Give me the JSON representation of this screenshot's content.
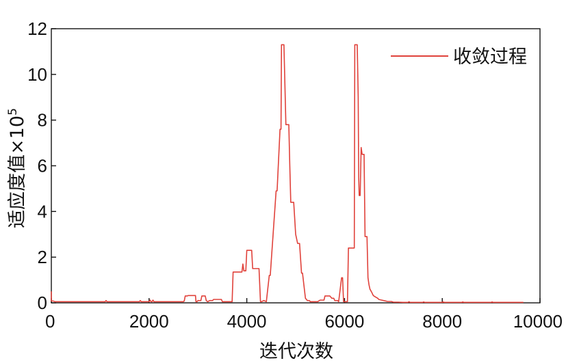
{
  "chart_data": {
    "type": "line",
    "title": "",
    "xlabel": "迭代次数",
    "ylabel": "适应度值×10",
    "ylabel_exponent": "5",
    "xlim": [
      0,
      10000
    ],
    "ylim": [
      0,
      12
    ],
    "xticks": [
      0,
      2000,
      4000,
      6000,
      8000,
      10000
    ],
    "yticks": [
      0,
      2,
      4,
      6,
      8,
      10,
      12
    ],
    "grid": false,
    "legend_position": "top-right",
    "series": [
      {
        "name": "收敛过程",
        "color": "#e0413a",
        "x": [
          0,
          0,
          40,
          80,
          1100,
          1120,
          1140,
          1160,
          1800,
          1820,
          1840,
          1900,
          2000,
          2020,
          2040,
          2060,
          2080,
          2100,
          2600,
          2700,
          2720,
          2740,
          2760,
          2780,
          2800,
          2950,
          2960,
          2980,
          3000,
          3060,
          3080,
          3150,
          3170,
          3200,
          3240,
          3300,
          3320,
          3340,
          3480,
          3500,
          3700,
          3720,
          3900,
          3920,
          3940,
          3980,
          4000,
          4100,
          4120,
          4250,
          4280,
          4300,
          4350,
          4400,
          4460,
          4480,
          4600,
          4620,
          4680,
          4700,
          4710,
          4720,
          4730,
          4740,
          4760,
          4800,
          4850,
          4860,
          4880,
          4900,
          4940,
          4960,
          5000,
          5040,
          5060,
          5080,
          5120,
          5140,
          5200,
          5240,
          5280,
          5300,
          5400,
          5450,
          5500,
          5560,
          5580,
          5600,
          5700,
          5740,
          5780,
          5800,
          5860,
          5880,
          5940,
          5960,
          5980,
          6020,
          6060,
          6080,
          6200,
          6210,
          6220,
          6240,
          6260,
          6280,
          6290,
          6300,
          6310,
          6320,
          6340,
          6360,
          6380,
          6400,
          6420,
          6440,
          6460,
          6480,
          6500,
          6520,
          6560,
          6580,
          6600,
          6640,
          6680,
          6700,
          6760,
          6800,
          6840,
          6880,
          6960,
          7000,
          7040,
          7100,
          7200,
          7300,
          7320,
          7340,
          7400,
          7600,
          7620,
          7640,
          7800,
          8000,
          8020,
          8040,
          8400,
          8420,
          8440,
          9000,
          9020,
          9040,
          9600,
          9650,
          9660
        ],
        "y": [
          0.5,
          0.08,
          0.08,
          0.05,
          0.05,
          0.1,
          0.05,
          0.05,
          0.05,
          0.1,
          0.05,
          0.05,
          0.05,
          0.12,
          0.05,
          0.05,
          0.12,
          0.05,
          0.05,
          0.05,
          0.08,
          0.3,
          0.3,
          0.3,
          0.32,
          0.32,
          0.05,
          0.05,
          0.1,
          0.1,
          0.3,
          0.3,
          0.1,
          0.05,
          0.1,
          0.1,
          0.15,
          0.15,
          0.15,
          0.05,
          0.05,
          1.35,
          1.35,
          1.7,
          1.4,
          1.4,
          2.3,
          2.3,
          1.5,
          1.5,
          0.05,
          0.05,
          0.1,
          0.05,
          1.2,
          1.2,
          4.9,
          4.9,
          7.6,
          7.6,
          11.3,
          11.3,
          11.3,
          11.3,
          11.3,
          7.8,
          7.8,
          7.8,
          6.0,
          4.4,
          4.4,
          4.4,
          3.0,
          2.6,
          2.6,
          2.6,
          1.3,
          1.3,
          0.2,
          0.1,
          0.1,
          0.05,
          0.05,
          0.05,
          0.12,
          0.12,
          0.12,
          0.3,
          0.3,
          0.2,
          0.2,
          0.1,
          0.1,
          0.05,
          1.1,
          1.1,
          0.05,
          0.05,
          0.05,
          2.4,
          2.4,
          11.3,
          11.3,
          11.3,
          11.3,
          9.0,
          5.5,
          4.7,
          4.7,
          4.7,
          6.8,
          6.5,
          6.5,
          6.5,
          2.9,
          2.9,
          2.9,
          1.1,
          0.8,
          0.6,
          0.45,
          0.35,
          0.3,
          0.25,
          0.2,
          0.15,
          0.12,
          0.1,
          0.08,
          0.06,
          0.06,
          0.03,
          0.03,
          0.03,
          0.02,
          0.02,
          0.05,
          0.02,
          0.02,
          0.02,
          0.04,
          0.02,
          0.02,
          0.02,
          0.04,
          0.02,
          0.02,
          0.04,
          0.02,
          0.02,
          0.04,
          0.02,
          0.02,
          0.02,
          0.02
        ]
      }
    ]
  }
}
